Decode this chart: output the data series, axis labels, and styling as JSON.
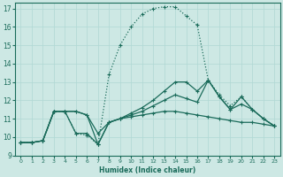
{
  "xlabel": "Humidex (Indice chaleur)",
  "bg_color": "#cde8e4",
  "grid_color": "#b0d8d4",
  "line_color": "#1a6b5a",
  "xlim": [
    -0.5,
    23.5
  ],
  "ylim": [
    9,
    17.3
  ],
  "yticks": [
    9,
    10,
    11,
    12,
    13,
    14,
    15,
    16,
    17
  ],
  "xticks": [
    0,
    1,
    2,
    3,
    4,
    5,
    6,
    7,
    8,
    9,
    10,
    11,
    12,
    13,
    14,
    15,
    16,
    17,
    18,
    19,
    20,
    21,
    22,
    23
  ],
  "line1_x": [
    0,
    1,
    2,
    3,
    4,
    5,
    6,
    7,
    8,
    9,
    10,
    11,
    12,
    13,
    14,
    15,
    16,
    17,
    18,
    19,
    20,
    21,
    22,
    23
  ],
  "line1_y": [
    9.7,
    9.7,
    9.8,
    11.4,
    11.4,
    10.2,
    10.1,
    9.6,
    13.4,
    15.0,
    16.0,
    16.7,
    17.0,
    17.1,
    17.1,
    16.6,
    16.1,
    13.1,
    12.3,
    11.7,
    12.2,
    11.5,
    11.0,
    10.6
  ],
  "line2_x": [
    0,
    1,
    2,
    3,
    4,
    5,
    6,
    7,
    8,
    9,
    10,
    11,
    12,
    13,
    14,
    15,
    16,
    17,
    18,
    19,
    20,
    21,
    22,
    23
  ],
  "line2_y": [
    9.7,
    9.7,
    9.8,
    11.4,
    11.4,
    11.4,
    11.2,
    10.2,
    10.8,
    11.0,
    11.3,
    11.6,
    12.0,
    12.5,
    13.0,
    13.0,
    12.5,
    13.1,
    12.2,
    11.5,
    11.8,
    11.5,
    11.0,
    10.6
  ],
  "line3_x": [
    0,
    1,
    2,
    3,
    4,
    5,
    6,
    7,
    8,
    9,
    10,
    11,
    12,
    13,
    14,
    15,
    16,
    17,
    18,
    19,
    20,
    21,
    22,
    23
  ],
  "line3_y": [
    9.7,
    9.7,
    9.8,
    11.4,
    11.4,
    10.2,
    10.2,
    9.6,
    10.8,
    11.0,
    11.2,
    11.4,
    11.7,
    12.0,
    12.3,
    12.1,
    11.9,
    13.1,
    12.2,
    11.5,
    12.2,
    11.5,
    11.0,
    10.6
  ],
  "line4_x": [
    0,
    1,
    2,
    3,
    4,
    5,
    6,
    7,
    8,
    9,
    10,
    11,
    12,
    13,
    14,
    15,
    16,
    17,
    18,
    19,
    20,
    21,
    22,
    23
  ],
  "line4_y": [
    9.7,
    9.7,
    9.8,
    11.4,
    11.4,
    11.4,
    11.2,
    9.6,
    10.8,
    11.0,
    11.1,
    11.2,
    11.3,
    11.4,
    11.4,
    11.3,
    11.2,
    11.1,
    11.0,
    10.9,
    10.8,
    10.8,
    10.7,
    10.6
  ]
}
